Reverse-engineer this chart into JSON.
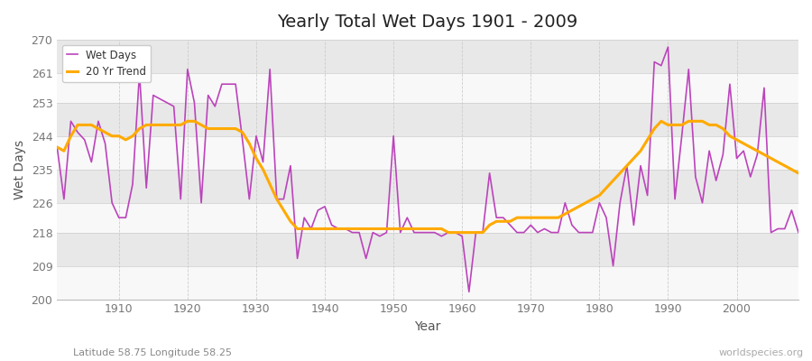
{
  "title": "Yearly Total Wet Days 1901 - 2009",
  "xlabel": "Year",
  "ylabel": "Wet Days",
  "subtitle": "Latitude 58.75 Longitude 58.25",
  "watermark": "worldspecies.org",
  "ylim": [
    200,
    270
  ],
  "yticks": [
    200,
    209,
    218,
    226,
    235,
    244,
    253,
    261,
    270
  ],
  "bg_color": "#f0f0f0",
  "band_color_light": "#f8f8f8",
  "band_color_dark": "#e8e8e8",
  "grid_color": "#cccccc",
  "line_color": "#bb44bb",
  "trend_color": "#ffaa00",
  "years": [
    1901,
    1902,
    1903,
    1904,
    1905,
    1906,
    1907,
    1908,
    1909,
    1910,
    1911,
    1912,
    1913,
    1914,
    1915,
    1916,
    1917,
    1918,
    1919,
    1920,
    1921,
    1922,
    1923,
    1924,
    1925,
    1926,
    1927,
    1928,
    1929,
    1930,
    1931,
    1932,
    1933,
    1934,
    1935,
    1936,
    1937,
    1938,
    1939,
    1940,
    1941,
    1942,
    1943,
    1944,
    1945,
    1946,
    1947,
    1948,
    1949,
    1950,
    1951,
    1952,
    1953,
    1954,
    1955,
    1956,
    1957,
    1958,
    1959,
    1960,
    1961,
    1962,
    1963,
    1964,
    1965,
    1966,
    1967,
    1968,
    1969,
    1970,
    1971,
    1972,
    1973,
    1974,
    1975,
    1976,
    1977,
    1978,
    1979,
    1980,
    1981,
    1982,
    1983,
    1984,
    1985,
    1986,
    1987,
    1988,
    1989,
    1990,
    1991,
    1992,
    1993,
    1994,
    1995,
    1996,
    1997,
    1998,
    1999,
    2000,
    2001,
    2002,
    2003,
    2004,
    2005,
    2006,
    2007,
    2008,
    2009
  ],
  "wet_days": [
    241,
    227,
    248,
    245,
    243,
    237,
    248,
    242,
    226,
    222,
    222,
    231,
    261,
    230,
    255,
    254,
    253,
    252,
    227,
    262,
    253,
    226,
    255,
    252,
    258,
    258,
    258,
    243,
    227,
    244,
    237,
    262,
    227,
    227,
    236,
    211,
    222,
    219,
    224,
    225,
    220,
    219,
    219,
    218,
    218,
    211,
    218,
    217,
    218,
    244,
    218,
    222,
    218,
    218,
    218,
    218,
    217,
    218,
    218,
    217,
    202,
    218,
    218,
    234,
    222,
    222,
    220,
    218,
    218,
    220,
    218,
    219,
    218,
    218,
    226,
    220,
    218,
    218,
    218,
    226,
    222,
    209,
    226,
    236,
    220,
    236,
    228,
    264,
    263,
    268,
    227,
    244,
    262,
    233,
    226,
    240,
    232,
    239,
    258,
    238,
    240,
    233,
    239,
    257,
    218,
    219,
    219,
    224,
    218
  ],
  "trend": [
    241,
    240,
    244,
    247,
    247,
    247,
    246,
    245,
    244,
    244,
    243,
    244,
    246,
    247,
    247,
    247,
    247,
    247,
    247,
    248,
    248,
    247,
    246,
    246,
    246,
    246,
    246,
    245,
    242,
    238,
    235,
    231,
    227,
    224,
    221,
    219,
    219,
    219,
    219,
    219,
    219,
    219,
    219,
    219,
    219,
    219,
    219,
    219,
    219,
    219,
    219,
    219,
    219,
    219,
    219,
    219,
    219,
    218,
    218,
    218,
    218,
    218,
    218,
    220,
    221,
    221,
    221,
    222,
    222,
    222,
    222,
    222,
    222,
    222,
    223,
    224,
    225,
    226,
    227,
    228,
    230,
    232,
    234,
    236,
    238,
    240,
    243,
    246,
    248,
    247,
    247,
    247,
    248,
    248,
    248,
    247,
    247,
    246,
    244,
    243,
    242,
    241,
    240,
    239,
    238,
    237,
    236,
    235,
    234
  ]
}
